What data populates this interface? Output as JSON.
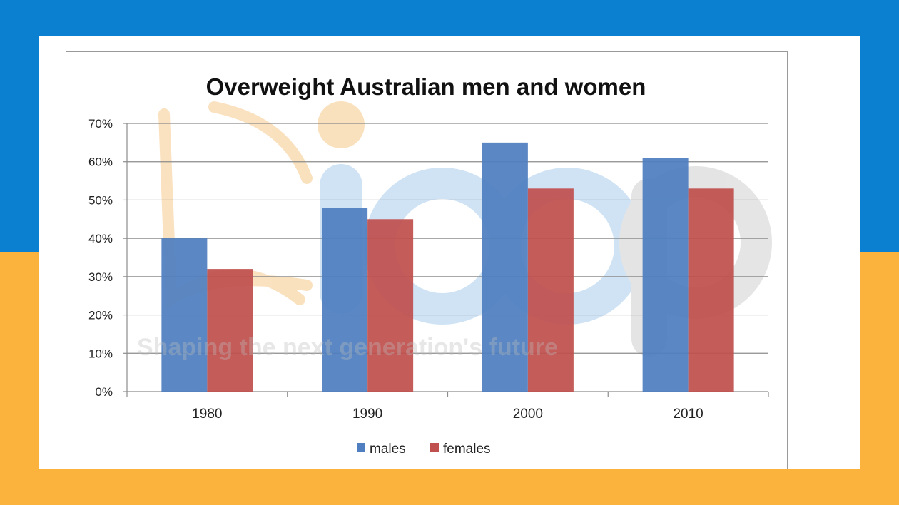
{
  "colors": {
    "males": "#4f7fc0",
    "females": "#c0504d",
    "grid": "#8c8c8c",
    "watermark_blue": "#a9cdee",
    "watermark_orange": "#f6c98a",
    "watermark_gray": "#bdbdbd"
  },
  "watermark": {
    "logo_text": "ieep",
    "tagline": "Shaping the next generation's future"
  },
  "chart_data": {
    "type": "bar",
    "title": "Overweight Australian men and women",
    "xlabel": "",
    "ylabel": "",
    "categories": [
      "1980",
      "1990",
      "2000",
      "2010"
    ],
    "series": [
      {
        "name": "males",
        "values": [
          40,
          48,
          65,
          61
        ]
      },
      {
        "name": "females",
        "values": [
          32,
          45,
          53,
          53
        ]
      }
    ],
    "ylim": [
      0,
      70
    ],
    "yticks": [
      0,
      10,
      20,
      30,
      40,
      50,
      60,
      70
    ],
    "ytick_labels": [
      "0%",
      "10%",
      "20%",
      "30%",
      "40%",
      "50%",
      "60%",
      "70%"
    ],
    "grid": true,
    "legend": "bottom"
  }
}
